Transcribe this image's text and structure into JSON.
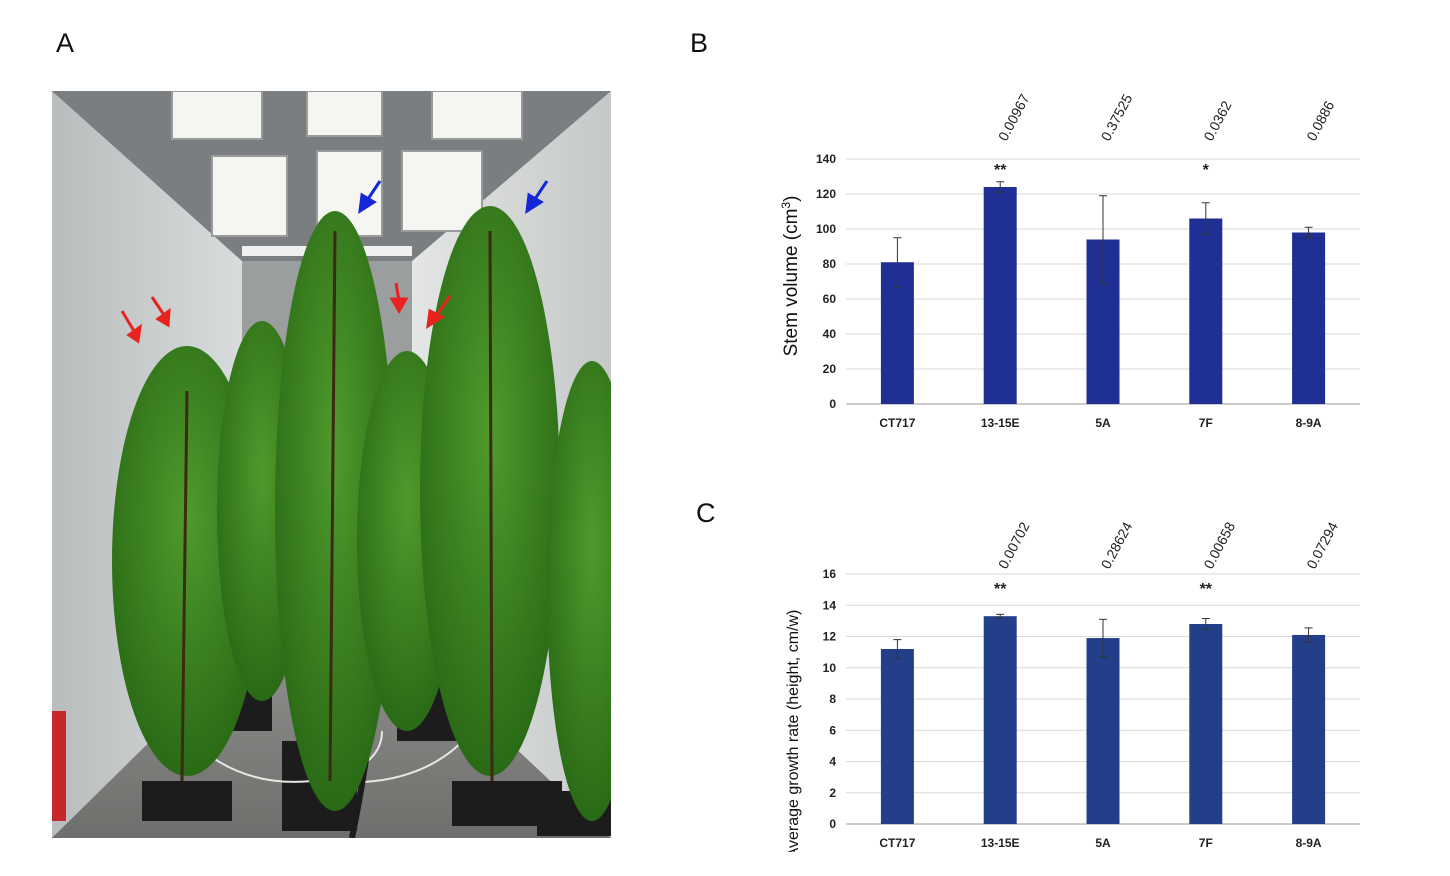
{
  "panels": {
    "a": "A",
    "b": "B",
    "c": "C"
  },
  "photo": {
    "subject": "poplar trees in growth chamber",
    "arrow_colors": {
      "red": "#e8231f",
      "blue": "#1526d8"
    }
  },
  "colors": {
    "bar_b": "#1f2f93",
    "bar_c": "#243f8a",
    "grid": "#d9d9d9",
    "axis": "#999999"
  },
  "chart_data": [
    {
      "type": "bar",
      "panel": "B",
      "categories": [
        "CT717",
        "13-15E",
        "5A",
        "7F",
        "8-9A"
      ],
      "values": [
        81,
        124,
        94,
        106,
        98
      ],
      "errors": [
        14,
        3,
        25,
        9,
        3
      ],
      "p_values": [
        "",
        "0.00967",
        "0.37525",
        "0.0362",
        "0.0886"
      ],
      "significance": [
        "",
        "**",
        "",
        "*",
        ""
      ],
      "ylabel": "Stem volume (cm³)",
      "ylabel_main": "Stem volume (cm",
      "ylabel_sup": "3",
      "ylabel_end": ")",
      "ylim": [
        0,
        140
      ],
      "yticks": [
        0,
        20,
        40,
        60,
        80,
        100,
        120,
        140
      ],
      "grid": true
    },
    {
      "type": "bar",
      "panel": "C",
      "categories": [
        "CT717",
        "13-15E",
        "5A",
        "7F",
        "8-9A"
      ],
      "values": [
        11.2,
        13.3,
        11.9,
        12.8,
        12.1
      ],
      "errors": [
        0.6,
        0.12,
        1.2,
        0.35,
        0.45
      ],
      "p_values": [
        "",
        "0.00702",
        "0.28624",
        "0.00658",
        "0.07294"
      ],
      "significance": [
        "",
        "**",
        "",
        "**",
        ""
      ],
      "ylabel": "Average growth rate (height, cm/w)",
      "ylim": [
        0,
        16
      ],
      "yticks": [
        0,
        2,
        4,
        6,
        8,
        10,
        12,
        14,
        16
      ],
      "grid": true
    }
  ]
}
